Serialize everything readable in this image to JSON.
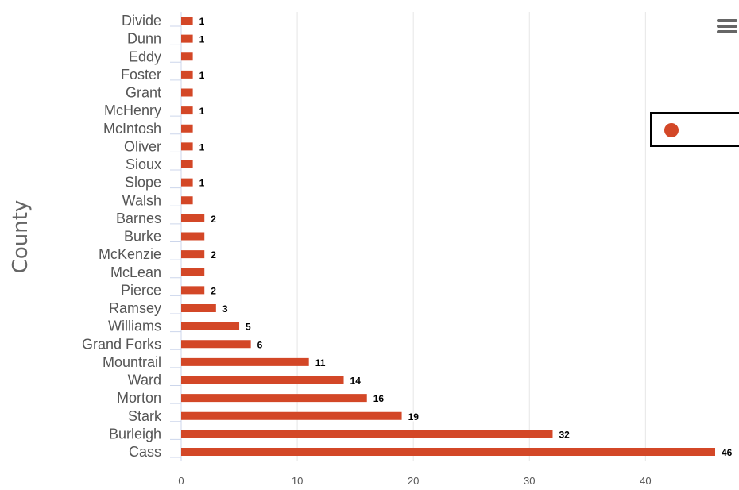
{
  "chart_data": {
    "type": "bar",
    "orientation": "horizontal",
    "ylabel": "County",
    "xlabel": "",
    "xlim": [
      0,
      46
    ],
    "x_ticks": [
      0,
      10,
      20,
      30,
      40
    ],
    "grid": true,
    "bar_color": "#d34727",
    "categories": [
      "Divide",
      "Dunn",
      "Eddy",
      "Foster",
      "Grant",
      "McHenry",
      "McIntosh",
      "Oliver",
      "Sioux",
      "Slope",
      "Walsh",
      "Barnes",
      "Burke",
      "McKenzie",
      "McLean",
      "Pierce",
      "Ramsey",
      "Williams",
      "Grand Forks",
      "Mountrail",
      "Ward",
      "Morton",
      "Stark",
      "Burleigh",
      "Cass"
    ],
    "values": [
      1,
      1,
      1,
      1,
      1,
      1,
      1,
      1,
      1,
      1,
      1,
      2,
      2,
      2,
      2,
      2,
      3,
      5,
      6,
      11,
      14,
      16,
      19,
      32,
      46
    ],
    "data_labels": [
      "1",
      "1",
      "",
      "1",
      "",
      "1",
      "",
      "1",
      "",
      "1",
      "",
      "2",
      "",
      "2",
      "",
      "2",
      "3",
      "5",
      "6",
      "11",
      "14",
      "16",
      "19",
      "32",
      "46"
    ],
    "legend": {
      "position": "right",
      "entries": [
        {
          "name": "",
          "color": "#d34727"
        }
      ]
    }
  },
  "menu": {
    "icon": "hamburger-menu-icon"
  }
}
